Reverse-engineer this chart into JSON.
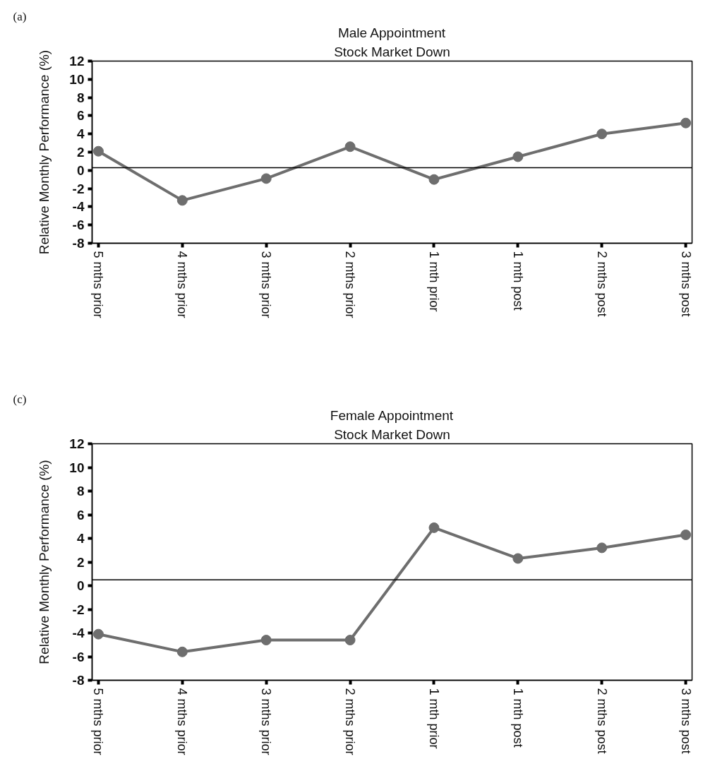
{
  "chart_data": [
    {
      "type": "line",
      "title": "Male Appointment",
      "subtitle": "Stock Market Down",
      "ylabel": "Relative Monthly Performance (%)",
      "annotations": [
        "(a)"
      ],
      "categories": [
        "5 mths prior",
        "4 mths prior",
        "3 mths prior",
        "2 mths prior",
        "1 mth prior",
        "1 mth post",
        "2 mths post",
        "3 mths post"
      ],
      "series": [
        {
          "color": "#6e6e6e",
          "values": [
            2.1,
            -3.3,
            -0.9,
            2.6,
            -1.0,
            1.5,
            4.0,
            5.2
          ]
        }
      ],
      "ylim": [
        -8,
        12
      ],
      "yticks": [
        -8,
        -6,
        -4,
        -2,
        0,
        2,
        4,
        6,
        8,
        10,
        12
      ],
      "ref_lines": [
        {
          "axis": "y",
          "value": 0.3,
          "color": "#000000"
        }
      ],
      "marker": "circle",
      "line_style": "solid"
    },
    {
      "type": "line",
      "title": "Female Appointment",
      "subtitle": "Stock Market Down",
      "ylabel": "Relative Monthly Performance (%)",
      "annotations": [
        "(c)"
      ],
      "categories": [
        "5 mths prior",
        "4 mths prior",
        "3 mths prior",
        "2 mths prior",
        "1 mth prior",
        "1 mth post",
        "2 mths post",
        "3 mths post"
      ],
      "series": [
        {
          "color": "#6e6e6e",
          "values": [
            -4.1,
            -5.6,
            -4.6,
            -4.6,
            4.9,
            2.3,
            3.2,
            4.3
          ]
        }
      ],
      "ylim": [
        -8,
        12
      ],
      "yticks": [
        -8,
        -6,
        -4,
        -2,
        0,
        2,
        4,
        6,
        8,
        10,
        12
      ],
      "ref_lines": [
        {
          "axis": "y",
          "value": 0.5,
          "color": "#000000"
        }
      ],
      "marker": "circle",
      "line_style": "solid"
    }
  ]
}
